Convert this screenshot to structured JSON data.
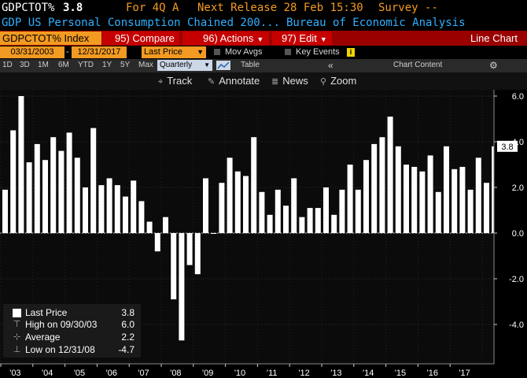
{
  "header": {
    "ticker_label": "GDPCTOT%",
    "last_value": "3.8",
    "for_label": "For 4Q A",
    "next_release": "Next Release 28 Feb 15:30",
    "survey": "Survey --",
    "description": "GDP US Personal Consumption Chained 200...",
    "source": "Bureau of Economic Analysis"
  },
  "toolbar": {
    "security": "GDPCTOT% Index",
    "compare": "95) Compare",
    "actions": "96) Actions",
    "edit": "97) Edit",
    "chart_type": "Line Chart"
  },
  "range": {
    "start_date": "03/31/2003",
    "end_date": "12/31/2017",
    "field": "Last Price",
    "mov_avgs": "Mov Avgs",
    "key_events": "Key Events"
  },
  "periods": {
    "items": [
      "1D",
      "3D",
      "1M",
      "6M",
      "YTD",
      "1Y",
      "5Y",
      "Max"
    ],
    "frequency": "Quarterly",
    "table_label": "Table",
    "chart_content": "Chart Content"
  },
  "tools": {
    "track": "Track",
    "annotate": "Annotate",
    "news": "News",
    "zoom": "Zoom"
  },
  "legend": {
    "last_price_label": "Last Price",
    "last_price_value": "3.8",
    "high_label": "High on 09/30/03",
    "high_value": "6.0",
    "average_label": "Average",
    "average_value": "2.2",
    "low_label": "Low on 12/31/08",
    "low_value": "-4.7"
  },
  "colors": {
    "accent_orange": "#f29a22",
    "toolbar_red": "#9b0000",
    "description_blue": "#2fb0ff",
    "bar_white": "#ffffff"
  },
  "chart_data": {
    "type": "bar",
    "series": [
      {
        "name": "Last Price",
        "values": [
          1.9,
          4.5,
          6.0,
          3.1,
          3.9,
          3.2,
          4.2,
          3.6,
          4.4,
          3.3,
          2.0,
          4.6,
          2.1,
          2.4,
          2.1,
          1.6,
          2.3,
          1.4,
          0.5,
          -0.8,
          0.7,
          -2.9,
          -4.7,
          -1.4,
          -1.8,
          2.4,
          0.0,
          2.2,
          3.3,
          2.7,
          2.5,
          4.2,
          1.8,
          0.8,
          1.9,
          1.2,
          2.4,
          0.7,
          1.1,
          1.1,
          2.0,
          0.8,
          1.9,
          3.0,
          1.9,
          3.2,
          3.9,
          4.2,
          5.1,
          3.8,
          3.0,
          2.9,
          2.7,
          3.4,
          1.8,
          3.8,
          2.8,
          2.9,
          1.9,
          3.3,
          2.2,
          3.8
        ]
      }
    ],
    "x_tick_labels": [
      "'03",
      "'04",
      "'05",
      "'06",
      "'07",
      "'08",
      "'09",
      "'10",
      "'11",
      "'12",
      "'13",
      "'14",
      "'15",
      "'16",
      "'17"
    ],
    "y_tick_labels": [
      "6.0",
      "4.0",
      "2.0",
      "0.0",
      "-2.0",
      "-4.0"
    ],
    "last_value_label": "3.8",
    "ylim": [
      -5.6,
      6.2
    ],
    "frequency": "quarterly",
    "start": "03/31/2003",
    "end": "12/31/2017"
  }
}
